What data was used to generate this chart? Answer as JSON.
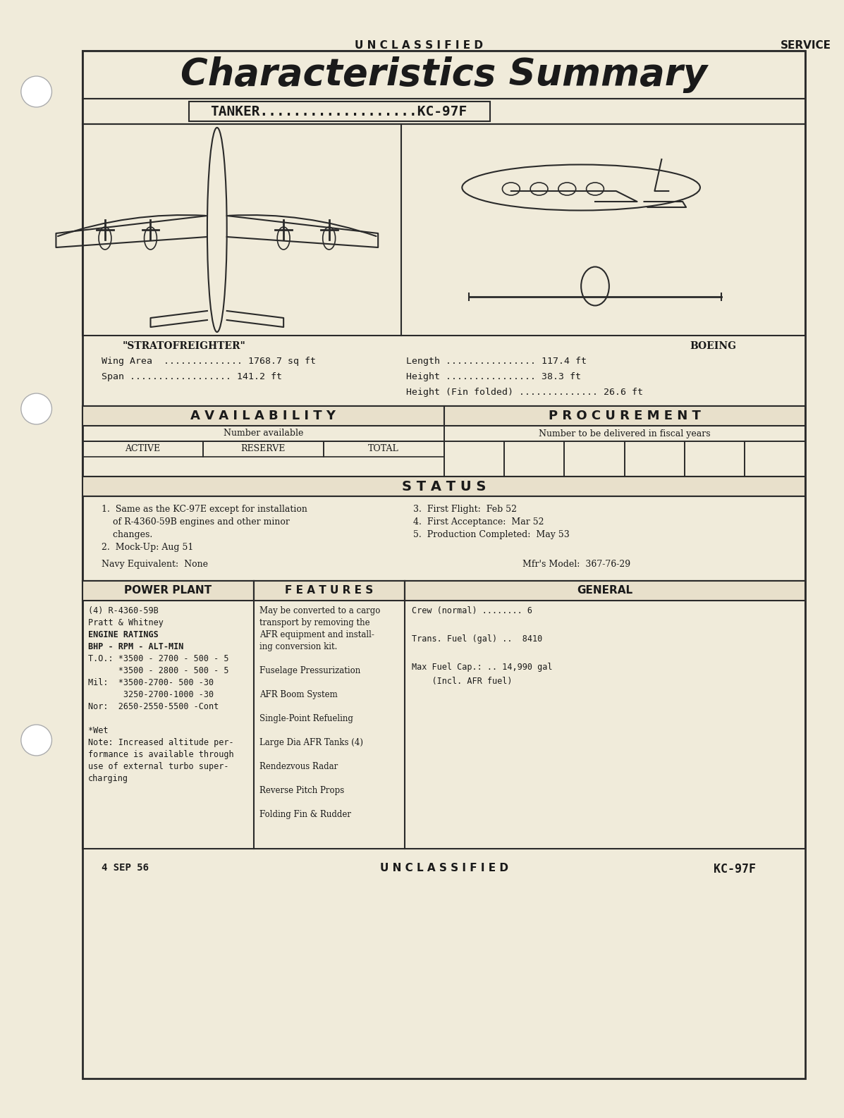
{
  "bg_color": "#f0ebda",
  "text_color": "#1a1a1a",
  "border_color": "#2a2a2a",
  "title_text": "Characteristics Summary",
  "unclassified_top": "U N C L A S S I F I E D",
  "service_text": "SERVICE",
  "tanker_label": "TANKER",
  "model_label": "KC-97F",
  "stratofreighter_label": "\"STRATOFREIGHTER\"",
  "boeing_label": "BOEING",
  "wing_area_text": "Wing Area  .............. 1768.7 sq ft",
  "span_text": "Span .................. 141.2 ft",
  "length_text": "Length ................ 117.4 ft",
  "height_text": "Height ................ 38.3 ft",
  "height_fin_text": "Height (Fin folded) .............. 26.6 ft",
  "availability_header": "A V A I L A B I L I T Y",
  "procurement_header": "P R O C U R E M E N T",
  "num_available_text": "Number available",
  "num_delivered_text": "Number to be delivered in fiscal years",
  "active_label": "ACTIVE",
  "reserve_label": "RESERVE",
  "total_label": "TOTAL",
  "status_header": "S T A T U S",
  "status_lines": [
    "1.  Same as the KC-97E except for installation",
    "    of R-4360-59B engines and other minor",
    "    changes.",
    "2.  Mock-Up: Aug 51"
  ],
  "status_right_lines": [
    "3.  First Flight:  Feb 52",
    "4.  First Acceptance:  Mar 52",
    "5.  Production Completed:  May 53"
  ],
  "navy_equiv_text": "Navy Equivalent:  None",
  "mfr_model_text": "Mfr's Model:  367-76-29",
  "power_plant_header": "POWER PLANT",
  "features_header": "F E A T U R E S",
  "general_header": "GENERAL",
  "power_plant_lines": [
    "(4) R-4360-59B",
    "Pratt & Whitney",
    "ENGINE RATINGS",
    "BHP - RPM - ALT-MIN",
    "T.O.: *3500 - 2700 - 500 - 5",
    "      *3500 - 2800 - 500 - 5",
    "Mil:  *3500-2700- 500 -30",
    "       3250-2700-1000 -30",
    "Nor:  2650-2550-5500 -Cont",
    "",
    "*Wet",
    "Note: Increased altitude per-",
    "formance is available through",
    "use of external turbo super-",
    "charging"
  ],
  "features_lines": [
    "May be converted to a cargo",
    "transport by removing the",
    "AFR equipment and install-",
    "ing conversion kit.",
    "",
    "Fuselage Pressurization",
    "",
    "AFR Boom System",
    "",
    "Single-Point Refueling",
    "",
    "Large Dia AFR Tanks (4)",
    "",
    "Rendezvous Radar",
    "",
    "Reverse Pitch Props",
    "",
    "Folding Fin & Rudder"
  ],
  "general_lines": [
    "Crew (normal) ........ 6",
    "",
    "Trans. Fuel (gal) ..  8410",
    "",
    "Max Fuel Cap.: .. 14,990 gal",
    "    (Incl. AFR fuel)"
  ],
  "date_text": "4 SEP 56",
  "unclassified_bottom": "U N C L A S S I F I E D",
  "model_bottom": "KC-97F"
}
